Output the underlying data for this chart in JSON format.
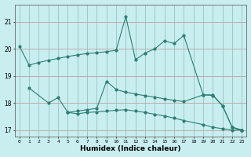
{
  "xlabel": "Humidex (Indice chaleur)",
  "bg_color": "#c8eef0",
  "line_color": "#2d7d72",
  "ylim": [
    16.75,
    21.65
  ],
  "yticks": [
    17,
    18,
    19,
    20,
    21
  ],
  "xticks": [
    0,
    1,
    2,
    3,
    4,
    5,
    6,
    7,
    8,
    9,
    10,
    11,
    12,
    13,
    14,
    15,
    16,
    17,
    18,
    19,
    20,
    21,
    22,
    23
  ],
  "grid_h_color": "#c09090",
  "grid_v_color": "#90b8b8",
  "line1_x": [
    0,
    1,
    2,
    3,
    4,
    5,
    6,
    7,
    8,
    9,
    10,
    11,
    12,
    13,
    14,
    15,
    16,
    17,
    19,
    20,
    21,
    22,
    23
  ],
  "line1_y": [
    20.1,
    19.4,
    19.5,
    19.58,
    19.65,
    19.72,
    19.78,
    19.83,
    19.86,
    19.9,
    19.95,
    21.2,
    19.6,
    19.85,
    20.0,
    20.3,
    20.2,
    20.5,
    18.3,
    18.3,
    17.9,
    17.1,
    17.0
  ],
  "line2_x": [
    1,
    3,
    4,
    5,
    6,
    7,
    8,
    9,
    10,
    11,
    12,
    13,
    14,
    15,
    16,
    17,
    19,
    20,
    21,
    22,
    23
  ],
  "line2_y": [
    18.55,
    18.0,
    18.2,
    17.65,
    17.7,
    17.75,
    17.8,
    18.8,
    18.5,
    18.4,
    18.33,
    18.27,
    18.22,
    18.15,
    18.1,
    18.05,
    18.3,
    18.28,
    17.9,
    17.1,
    17.0
  ],
  "line3_x": [
    5,
    6,
    7,
    8,
    9,
    10,
    11,
    12,
    13,
    14,
    15,
    16,
    17,
    19,
    20,
    21,
    22,
    23
  ],
  "line3_y": [
    17.65,
    17.6,
    17.65,
    17.67,
    17.7,
    17.73,
    17.75,
    17.7,
    17.65,
    17.58,
    17.52,
    17.44,
    17.35,
    17.2,
    17.1,
    17.05,
    17.0,
    17.0
  ]
}
